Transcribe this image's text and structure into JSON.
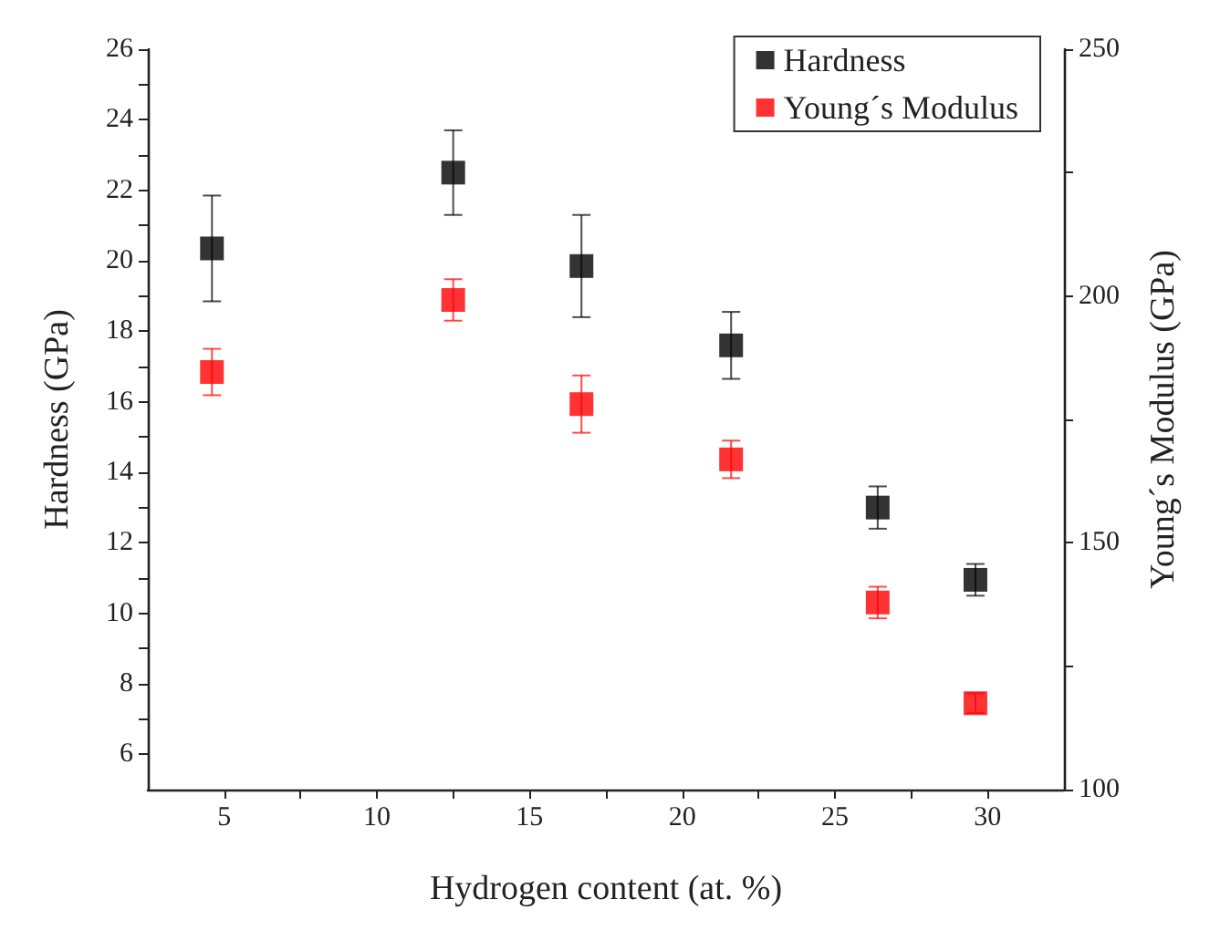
{
  "chart_data": {
    "type": "scatter",
    "xlabel": "Hydrogen content (at. %)",
    "ylabel": "Hardness (GPa)",
    "y2label": "Young´s Modulus (GPa)",
    "x": [
      4.6,
      12.5,
      16.7,
      21.6,
      26.4,
      29.6
    ],
    "series": [
      {
        "name": "Hardness",
        "color": "#000000",
        "values": [
          20.35,
          22.5,
          19.85,
          17.6,
          13.0,
          10.95
        ],
        "errors": [
          1.5,
          1.2,
          1.45,
          0.95,
          0.6,
          0.45
        ]
      },
      {
        "name": "Young´s Modulus",
        "color": "#ff0000",
        "axis": "y2",
        "values": [
          184.6,
          199.2,
          178.1,
          166.9,
          137.9,
          117.5
        ],
        "errors": [
          4.7,
          4.2,
          5.8,
          3.8,
          3.2,
          2
        ]
      }
    ],
    "xlim": [
      2.5,
      32.5
    ],
    "xticks": [
      5,
      {
        "value": 7.5,
        "label": null
      },
      10,
      {
        "value": 12.5,
        "label": null
      },
      15,
      {
        "value": 17.5,
        "label": null
      },
      20,
      {
        "value": 22.5,
        "label": null
      },
      25,
      {
        "value": 27.5,
        "label": null
      },
      30
    ],
    "ylim": [
      5,
      26
    ],
    "yticks": [
      6,
      {
        "value": 7,
        "label": null
      },
      8,
      {
        "value": 9,
        "label": null
      },
      10,
      {
        "value": 11,
        "label": null
      },
      12,
      {
        "value": 13,
        "label": null
      },
      14,
      {
        "value": 15,
        "label": null
      },
      16,
      {
        "value": 17,
        "label": null
      },
      18,
      {
        "value": 19,
        "label": null
      },
      20,
      {
        "value": 21,
        "label": null
      },
      22,
      {
        "value": 23,
        "label": null
      },
      24,
      {
        "value": 25,
        "label": null
      },
      26
    ],
    "y2lim": [
      100,
      250
    ],
    "y2ticks": [
      100,
      {
        "value": 125,
        "label": null
      },
      150,
      {
        "value": 175,
        "label": null
      },
      200,
      {
        "value": 225,
        "label": null
      },
      250
    ],
    "marker": "square",
    "grid": false,
    "legend": "top right"
  }
}
